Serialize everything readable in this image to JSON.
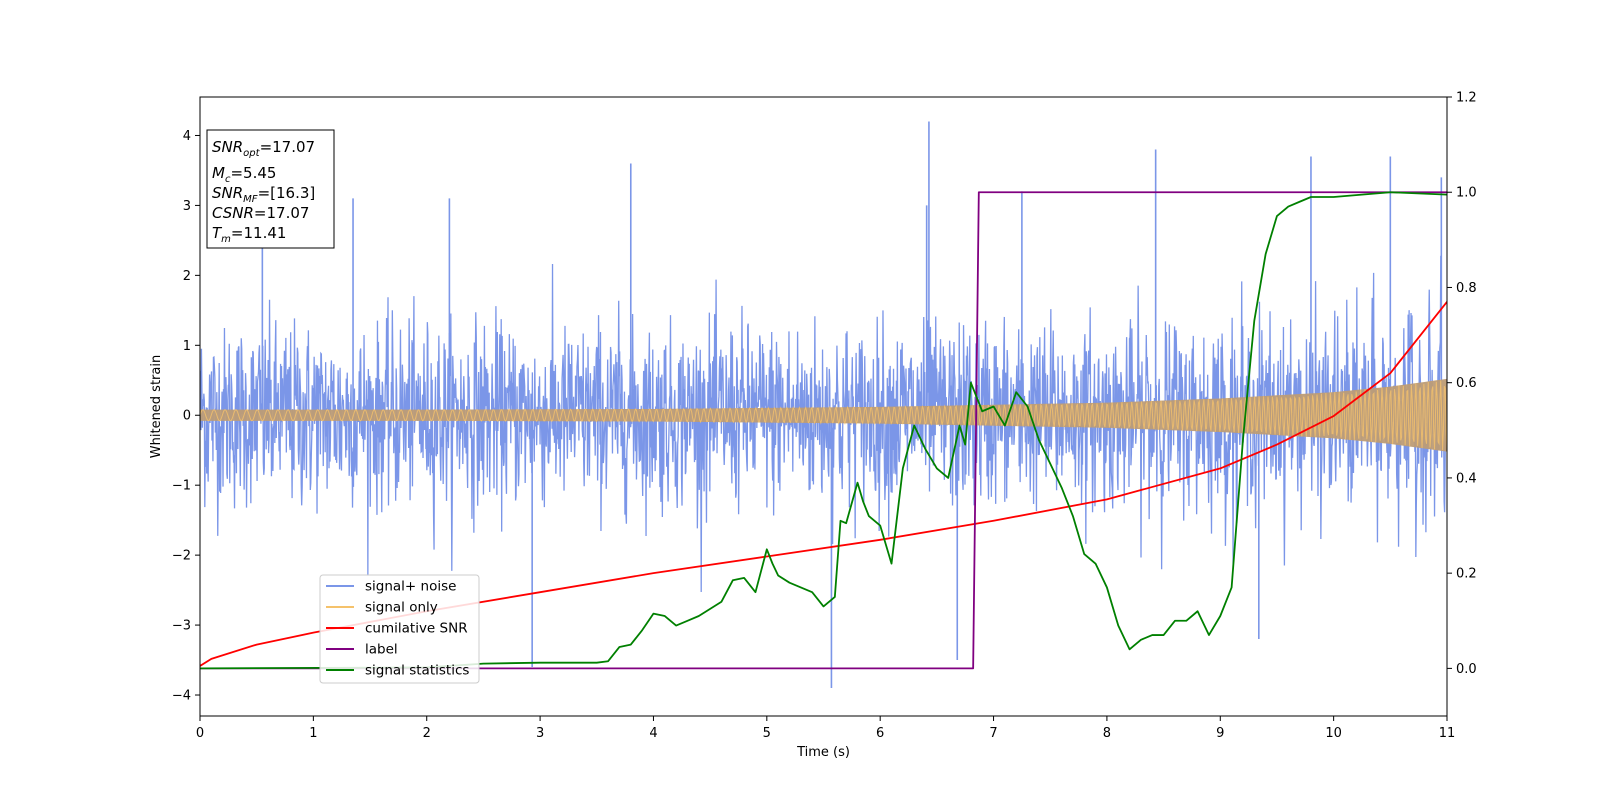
{
  "chart_data": {
    "type": "line",
    "xlabel": "Time (s)",
    "ylabel": "Whitened strain",
    "xlim": [
      0,
      11
    ],
    "ylim": [
      -4.3,
      4.55
    ],
    "ylim_right": [
      -0.1,
      1.2
    ],
    "xticks": [
      "0",
      "1",
      "2",
      "3",
      "4",
      "5",
      "6",
      "7",
      "8",
      "9",
      "10",
      "11"
    ],
    "yticks": [
      "-4",
      "-3",
      "-2",
      "-1",
      "0",
      "1",
      "2",
      "3",
      "4"
    ],
    "yticks_right": [
      "0.0",
      "0.2",
      "0.4",
      "0.6",
      "0.8",
      "1.0",
      "1.2"
    ],
    "grid": false,
    "legend_position": "lower-left",
    "colors": {
      "signal_noise": "#7b96e8",
      "signal_only": "#f5c26b",
      "overlap": "#bd9c76",
      "cumulative_snr": "#ff0000",
      "label": "#800080",
      "signal_statistics": "#008000"
    },
    "annotation": {
      "snr_opt": {
        "base": "SNR",
        "sub": "opt",
        "value": "=17.07"
      },
      "mc": {
        "base": "M",
        "sub": "c",
        "value": "=5.45"
      },
      "snr_mf": {
        "base": "SNR",
        "sub": "MF",
        "value": "=[16.3]"
      },
      "csnr": {
        "base": "CSNR",
        "sub": "",
        "value": "=17.07"
      },
      "tm": {
        "base": "T",
        "sub": "m",
        "value": "=11.41"
      }
    },
    "series": [
      {
        "name": "signal+ noise",
        "axis": "left",
        "style": "noise band, approximate",
        "core_amplitude": 1.4,
        "peaks": [
          {
            "x": 3.8,
            "y": 3.6
          },
          {
            "x": 6.43,
            "y": 4.2
          },
          {
            "x": 8.43,
            "y": 3.8
          },
          {
            "x": 9.8,
            "y": 3.7
          },
          {
            "x": 10.5,
            "y": 3.7
          },
          {
            "x": 6.41,
            "y": 3.0
          },
          {
            "x": 5.57,
            "y": -3.9
          },
          {
            "x": 2.93,
            "y": -3.6
          },
          {
            "x": 6.68,
            "y": -3.5
          },
          {
            "x": 9.34,
            "y": -3.2
          },
          {
            "x": 0.55,
            "y": 3.0
          },
          {
            "x": 1.35,
            "y": 3.1
          },
          {
            "x": 2.2,
            "y": 3.1
          },
          {
            "x": 7.25,
            "y": 3.2
          },
          {
            "x": 10.95,
            "y": 3.4
          }
        ]
      },
      {
        "name": "signal only",
        "axis": "left",
        "style": "chirp",
        "envelope": [
          {
            "x": 0,
            "y": 0.08
          },
          {
            "x": 2,
            "y": 0.08
          },
          {
            "x": 4,
            "y": 0.09
          },
          {
            "x": 6,
            "y": 0.12
          },
          {
            "x": 8,
            "y": 0.18
          },
          {
            "x": 9,
            "y": 0.24
          },
          {
            "x": 10,
            "y": 0.33
          },
          {
            "x": 10.5,
            "y": 0.41
          },
          {
            "x": 11,
            "y": 0.52
          }
        ]
      },
      {
        "name": "cumilative SNR",
        "axis": "right",
        "x": [
          0,
          0.1,
          0.5,
          1,
          2,
          3,
          4,
          5,
          6,
          7,
          8,
          9,
          9.5,
          10,
          10.5,
          11
        ],
        "values": [
          0.005,
          0.02,
          0.05,
          0.075,
          0.12,
          0.16,
          0.2,
          0.235,
          0.27,
          0.31,
          0.355,
          0.42,
          0.47,
          0.53,
          0.62,
          0.77
        ]
      },
      {
        "name": "label",
        "axis": "right",
        "x": [
          0,
          6.82,
          6.87,
          11
        ],
        "values": [
          0,
          0,
          1,
          1
        ]
      },
      {
        "name": "signal statistics",
        "axis": "right",
        "x": [
          0,
          2,
          2.5,
          3,
          3.5,
          3.6,
          3.7,
          3.8,
          3.9,
          4.0,
          4.1,
          4.2,
          4.3,
          4.4,
          4.5,
          4.6,
          4.7,
          4.8,
          4.9,
          5.0,
          5.05,
          5.1,
          5.2,
          5.3,
          5.4,
          5.5,
          5.6,
          5.65,
          5.7,
          5.8,
          5.85,
          5.9,
          6.0,
          6.1,
          6.2,
          6.3,
          6.4,
          6.5,
          6.6,
          6.7,
          6.75,
          6.8,
          6.85,
          6.9,
          7.0,
          7.1,
          7.2,
          7.3,
          7.4,
          7.5,
          7.6,
          7.7,
          7.8,
          7.9,
          8.0,
          8.1,
          8.2,
          8.3,
          8.4,
          8.5,
          8.6,
          8.7,
          8.8,
          8.9,
          9.0,
          9.1,
          9.2,
          9.3,
          9.4,
          9.5,
          9.6,
          9.7,
          9.8,
          10.0,
          10.5,
          11
        ],
        "values": [
          0,
          0.002,
          0.01,
          0.012,
          0.012,
          0.015,
          0.045,
          0.05,
          0.08,
          0.115,
          0.11,
          0.09,
          0.1,
          0.11,
          0.125,
          0.14,
          0.185,
          0.19,
          0.16,
          0.25,
          0.22,
          0.195,
          0.18,
          0.17,
          0.16,
          0.13,
          0.15,
          0.31,
          0.305,
          0.39,
          0.35,
          0.32,
          0.3,
          0.22,
          0.42,
          0.51,
          0.46,
          0.42,
          0.4,
          0.51,
          0.47,
          0.6,
          0.57,
          0.54,
          0.55,
          0.51,
          0.58,
          0.55,
          0.48,
          0.43,
          0.38,
          0.32,
          0.24,
          0.22,
          0.17,
          0.09,
          0.04,
          0.06,
          0.07,
          0.07,
          0.1,
          0.1,
          0.12,
          0.07,
          0.11,
          0.17,
          0.48,
          0.73,
          0.87,
          0.95,
          0.97,
          0.98,
          0.99,
          0.99,
          1.0,
          0.995
        ]
      }
    ]
  }
}
